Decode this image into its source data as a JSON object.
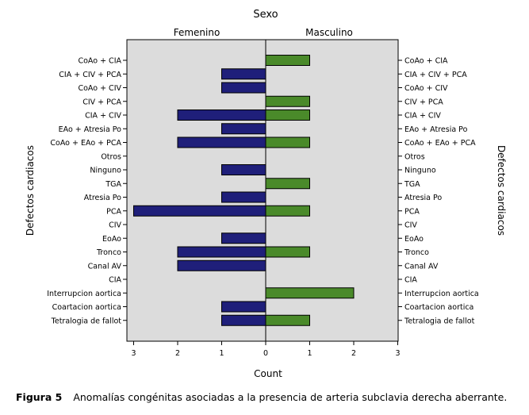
{
  "chart_data": {
    "type": "bar",
    "orientation": "horizontal",
    "title": "Sexo",
    "panels": [
      "Femenino",
      "Masculino"
    ],
    "xlabel": "Count",
    "ylabel": "Defectos cardiacos",
    "xlim": [
      0,
      3
    ],
    "x_ticks": [
      0,
      1,
      2,
      3
    ],
    "categories": [
      "CoAo + CIA",
      "CIA + CIV + PCA",
      "CoAo + CIV",
      "CIV + PCA",
      "CIA + CIV",
      "EAo + Atresia Po",
      "CoAo + EAo + PCA",
      "Otros",
      "Ninguno",
      "TGA",
      "Atresia Po",
      "PCA",
      "CIV",
      "EoAo",
      "Tronco",
      "Canal AV",
      "CIA",
      "Interrupcion aortica",
      "Coartacion aortica",
      "Tetralogia de fallot"
    ],
    "series": [
      {
        "name": "Femenino",
        "color": "#1f1f7a",
        "values": [
          0,
          1,
          1,
          0,
          2,
          1,
          2,
          0,
          1,
          0,
          1,
          3,
          0,
          1,
          2,
          2,
          0,
          0,
          1,
          1
        ]
      },
      {
        "name": "Masculino",
        "color": "#4a8a2a",
        "values": [
          1,
          0,
          0,
          1,
          1,
          0,
          1,
          0,
          0,
          1,
          0,
          1,
          0,
          0,
          1,
          0,
          0,
          2,
          0,
          1
        ]
      }
    ]
  },
  "caption": {
    "label": "Figura 5",
    "text": "Anomalías congénitas asociadas a la presencia de arteria subclavia derecha aberrante."
  }
}
